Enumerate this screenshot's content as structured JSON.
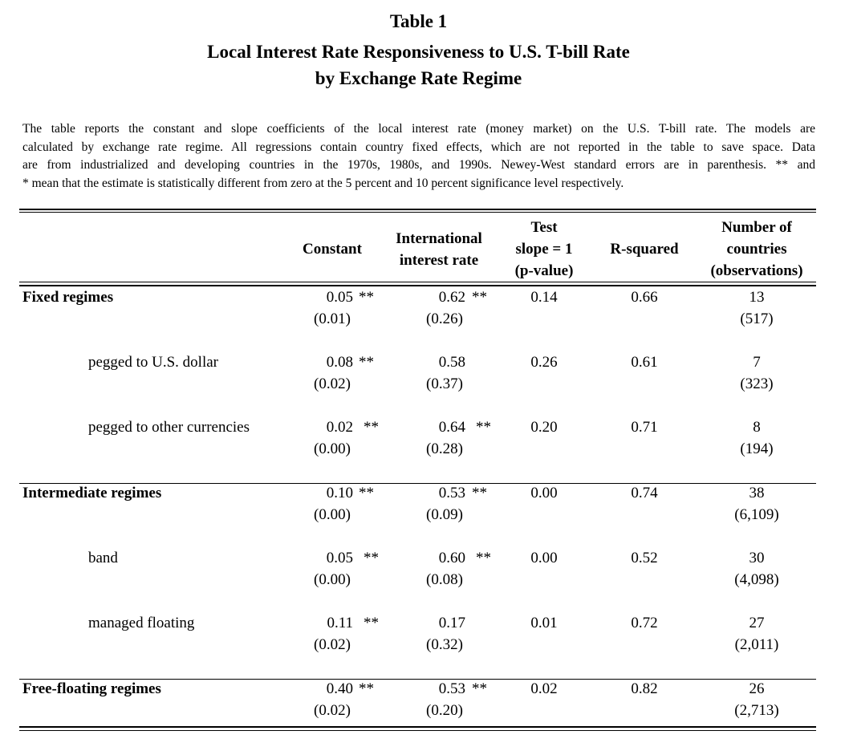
{
  "title_line1": "Table 1",
  "title_line2": "Local Interest Rate Responsiveness to U.S. T-bill Rate",
  "title_line3": "by Exchange Rate Regime",
  "note_lines": [
    "The table reports the constant and slope coefficients of the local interest rate (money market) on the U.S. T-bill rate.  The models are",
    "calculated by exchange rate regime.  All regressions contain country fixed effects, which are not reported in the table to save space.  Data",
    "are from industrialized and developing countries in the 1970s, 1980s, and 1990s.  Newey-West standard errors are in parenthesis. ** and",
    "* mean that the estimate is statistically different from zero at the 5 percent and 10 percent significance level respectively."
  ],
  "headers": {
    "constant": "Constant",
    "intl_1": "International",
    "intl_2": "interest rate",
    "test_1": "Test",
    "test_2": "slope = 1",
    "test_3": "(p-value)",
    "rsq": "R-squared",
    "num_1": "Number of",
    "num_2": "countries",
    "num_3": "(observations)"
  },
  "rows": [
    {
      "label": "Fixed regimes",
      "const": "0.05",
      "const_sig": "**",
      "const_se": "(0.01)",
      "intl": "0.62",
      "intl_sig": "**",
      "intl_se": "(0.26)",
      "test": "0.14",
      "rsq": "0.66",
      "n": "13",
      "obs": "(517)"
    },
    {
      "label": "pegged to U.S. dollar",
      "const": "0.08",
      "const_sig": "**",
      "const_se": "(0.02)",
      "intl": "0.58",
      "intl_sig": "",
      "intl_se": "(0.37)",
      "test": "0.26",
      "rsq": "0.61",
      "n": "7",
      "obs": "(323)"
    },
    {
      "label": "pegged to other currencies",
      "const": "0.02",
      "const_sig": "**",
      "const_se": "(0.00)",
      "intl": "0.64",
      "intl_sig": "**",
      "intl_se": "(0.28)",
      "test": "0.20",
      "rsq": "0.71",
      "n": "8",
      "obs": "(194)"
    },
    {
      "label": "Intermediate regimes",
      "const": "0.10",
      "const_sig": "**",
      "const_se": "(0.00)",
      "intl": "0.53",
      "intl_sig": "**",
      "intl_se": "(0.09)",
      "test": "0.00",
      "rsq": "0.74",
      "n": "38",
      "obs": "(6,109)"
    },
    {
      "label": "band",
      "const": "0.05",
      "const_sig": "**",
      "const_se": "(0.00)",
      "intl": "0.60",
      "intl_sig": "**",
      "intl_se": "(0.08)",
      "test": "0.00",
      "rsq": "0.52",
      "n": "30",
      "obs": "(4,098)"
    },
    {
      "label": "managed floating",
      "const": "0.11",
      "const_sig": "**",
      "const_se": "(0.02)",
      "intl": "0.17",
      "intl_sig": "",
      "intl_se": "(0.32)",
      "test": "0.01",
      "rsq": "0.72",
      "n": "27",
      "obs": "(2,011)"
    },
    {
      "label": "Free-floating regimes",
      "const": "0.40",
      "const_sig": "**",
      "const_se": "(0.02)",
      "intl": "0.53",
      "intl_sig": "**",
      "intl_se": "(0.20)",
      "test": "0.02",
      "rsq": "0.82",
      "n": "26",
      "obs": "(2,713)"
    }
  ]
}
